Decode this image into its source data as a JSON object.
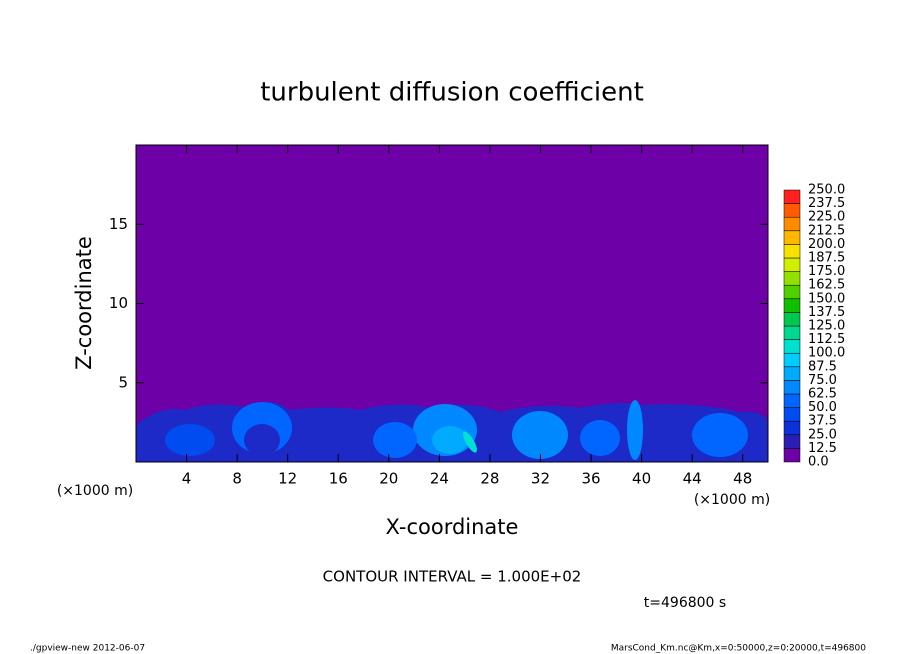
{
  "chart_data": {
    "type": "contour",
    "title": "turbulent diffusion coefficient",
    "xlabel": "X-coordinate",
    "ylabel": "Z-coordinate",
    "x_unit": "(×1000 m)",
    "y_unit": "(×1000 m)",
    "xlim": [
      0,
      50
    ],
    "ylim": [
      0,
      20
    ],
    "xticks": [
      4,
      8,
      12,
      16,
      20,
      24,
      28,
      32,
      36,
      40,
      44,
      48
    ],
    "yticks": [
      5,
      10,
      15
    ],
    "background_color": "#6e00a8",
    "colorbar": {
      "levels": [
        {
          "value": 0,
          "label": "0.0"
        },
        12.5,
        {
          "value": 25,
          "label": "25.0"
        },
        37.5,
        {
          "value": 50,
          "label": "50.0"
        },
        62.5,
        {
          "value": 75,
          "label": "75.0"
        },
        87.5,
        {
          "value": 100,
          "label": "100.0"
        },
        112.5,
        {
          "value": 125,
          "label": "125.0"
        },
        137.5,
        {
          "value": 150,
          "label": "150.0"
        },
        162.5,
        {
          "value": 175,
          "label": "175.0"
        },
        187.5,
        {
          "value": 200,
          "label": "200.0"
        },
        212.5,
        {
          "value": 225,
          "label": "225.0"
        },
        237.5,
        {
          "value": 250,
          "label": "250.0"
        }
      ],
      "colors": [
        "#6e00a8",
        "#2a1eb4",
        "#0a32d8",
        "#004cf0",
        "#0066ff",
        "#0088ff",
        "#00aaff",
        "#00ccff",
        "#00e0d0",
        "#00d890",
        "#00c850",
        "#10c000",
        "#50d000",
        "#90e000",
        "#d0f000",
        "#f8e000",
        "#ffb800",
        "#ff8c00",
        "#ff5a00",
        "#ff2020",
        "#ff6060"
      ]
    },
    "contour_interval": "CONTOUR INTERVAL = 1.000E+02",
    "time_label": "t=496800 s",
    "footer_left": "./gpview-new  2012-06-07",
    "footer_right": "MarsCond_Km.nc@Km,x=0:50000,z=0:20000,t=496800"
  }
}
